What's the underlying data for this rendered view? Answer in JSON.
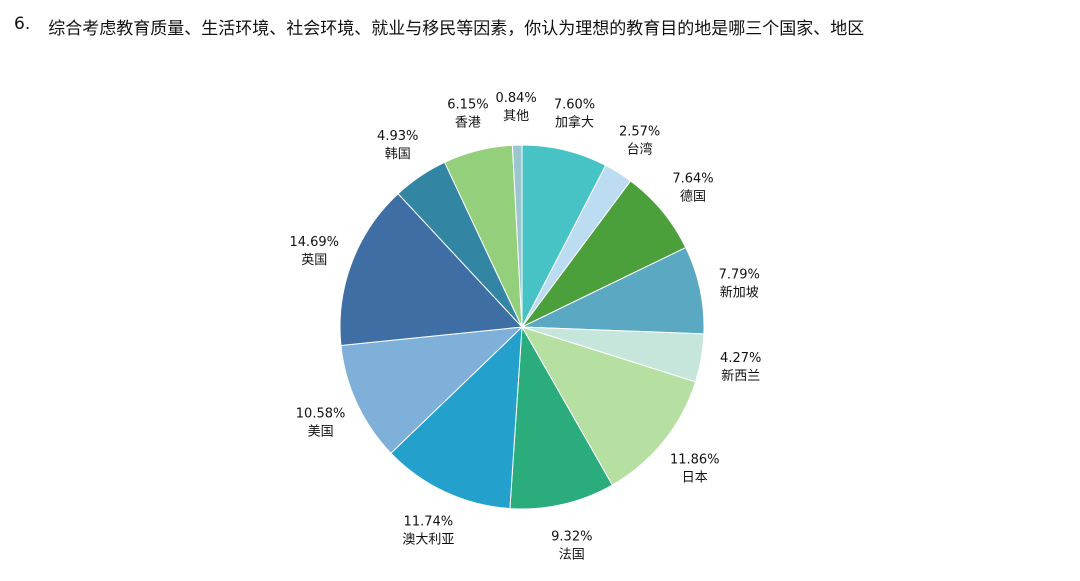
{
  "question": {
    "number": "6.",
    "text": "综合考虑教育质量、生活环境、社会环境、就业与移民等因素，你认为理想的教育目的地是哪三个国家、地区"
  },
  "chart_data": {
    "type": "pie",
    "title": "",
    "start_angle_deg": -90,
    "direction": "clockwise",
    "slices": [
      {
        "label": "加拿大",
        "value": 7.6,
        "display": "7.60%",
        "color": "#47c3c6"
      },
      {
        "label": "台湾",
        "value": 2.57,
        "display": "2.57%",
        "color": "#bcdcf2"
      },
      {
        "label": "德国",
        "value": 7.64,
        "display": "7.64%",
        "color": "#4ca03c"
      },
      {
        "label": "新加坡",
        "value": 7.79,
        "display": "7.79%",
        "color": "#5aa8c1"
      },
      {
        "label": "新西兰",
        "value": 4.27,
        "display": "4.27%",
        "color": "#c6e6dc"
      },
      {
        "label": "日本",
        "value": 11.86,
        "display": "11.86%",
        "color": "#b6e0a2"
      },
      {
        "label": "法国",
        "value": 9.32,
        "display": "9.32%",
        "color": "#2aac7d"
      },
      {
        "label": "澳大利亚",
        "value": 11.74,
        "display": "11.74%",
        "color": "#23a1cc"
      },
      {
        "label": "美国",
        "value": 10.58,
        "display": "10.58%",
        "color": "#7eb0da"
      },
      {
        "label": "英国",
        "value": 14.69,
        "display": "14.69%",
        "color": "#3f6ea4"
      },
      {
        "label": "韩国",
        "value": 4.93,
        "display": "4.93%",
        "color": "#3386a3"
      },
      {
        "label": "香港",
        "value": 6.15,
        "display": "6.15%",
        "color": "#94d07c"
      },
      {
        "label": "其他",
        "value": 0.84,
        "display": "0.84%",
        "color": "#9bc6cf"
      }
    ]
  }
}
